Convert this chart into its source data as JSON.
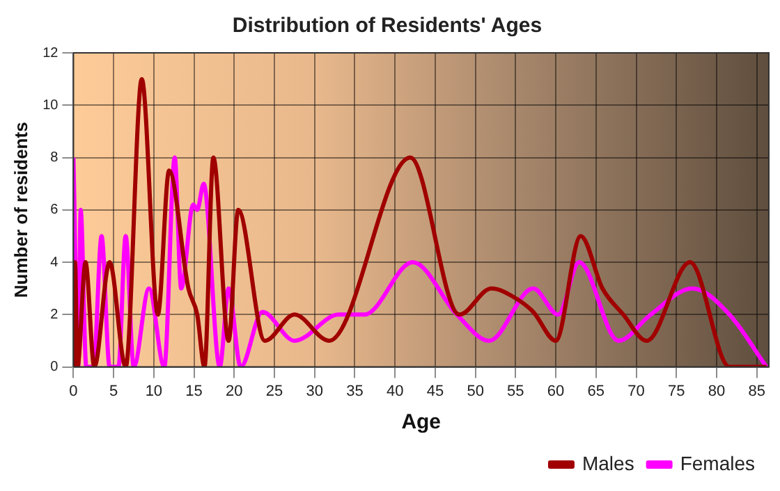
{
  "chart_data": {
    "type": "line",
    "title": "Distribution of Residents' Ages",
    "xlabel": "Age",
    "ylabel": "Number of residents",
    "xlim": [
      0,
      86.5
    ],
    "xticks": [
      0,
      5,
      10,
      15,
      20,
      25,
      30,
      35,
      40,
      45,
      50,
      55,
      60,
      65,
      70,
      75,
      80,
      85
    ],
    "ylim": [
      0,
      12
    ],
    "yticks": [
      0,
      2,
      4,
      6,
      8,
      10,
      12
    ],
    "grid": true,
    "legend": "bottom right",
    "marker": "none",
    "line_style": "solid",
    "series": [
      {
        "name": "Males",
        "color": "#a00000",
        "x": [
          0,
          0.2,
          0.5,
          1.5,
          2.6,
          4.5,
          6.5,
          8.5,
          10.5,
          11.9,
          14.3,
          15.4,
          16.3,
          17.4,
          19.3,
          20.5,
          23.8,
          27.5,
          31.8,
          41.9,
          48,
          52,
          54.6,
          57.2,
          60,
          63.1,
          65.8,
          68.4,
          71.3,
          76.7,
          81.6,
          86.2
        ],
        "values": [
          0,
          4,
          0,
          4,
          0,
          4,
          0,
          11,
          2,
          7.5,
          3,
          2,
          0,
          8,
          1,
          6,
          1,
          2,
          1,
          8,
          2,
          3,
          2.7,
          2.1,
          1,
          5,
          3,
          2,
          1,
          4,
          0,
          0
        ]
      },
      {
        "name": "Females",
        "color": "#ff00ff",
        "x": [
          0,
          0.6,
          0.9,
          1.6,
          2.5,
          3.5,
          4.5,
          5.6,
          6.5,
          7.5,
          9.4,
          11.3,
          12.6,
          13.4,
          14.9,
          15.4,
          16.2,
          18.2,
          19.3,
          20.8,
          23.5,
          27.5,
          33,
          36.2,
          42.2,
          47.7,
          51.7,
          57.2,
          60.3,
          62.9,
          67.8,
          71.8,
          77,
          81.6,
          86.2
        ],
        "values": [
          8,
          0,
          6,
          0,
          0,
          5,
          0,
          0,
          5,
          0,
          3,
          0,
          8,
          3,
          6.2,
          6,
          7,
          0,
          3,
          0,
          2.1,
          1,
          2,
          2,
          4,
          2,
          1,
          3,
          2,
          4,
          1,
          2,
          3,
          2,
          0
        ]
      }
    ]
  }
}
